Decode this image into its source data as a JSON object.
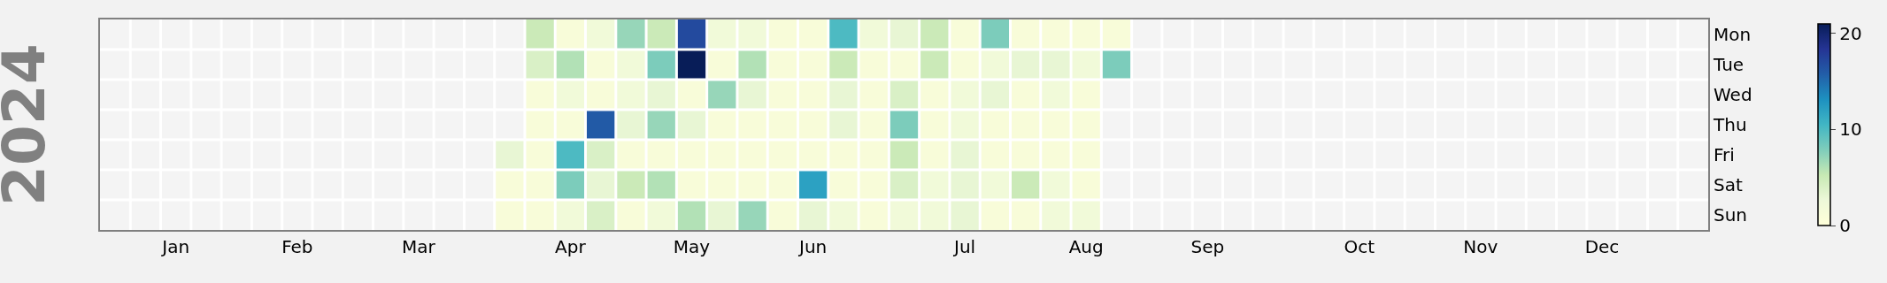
{
  "chart_data": {
    "type": "heatmap",
    "ylabel": "2024",
    "categories": [
      null,
      null,
      "Jan",
      null,
      null,
      null,
      "Feb",
      null,
      null,
      null,
      "Mar",
      null,
      null,
      null,
      null,
      "Apr",
      null,
      null,
      null,
      "May",
      null,
      null,
      null,
      "Jun",
      null,
      null,
      null,
      null,
      "Jul",
      null,
      null,
      null,
      "Aug",
      null,
      null,
      null,
      "Sep",
      null,
      null,
      null,
      null,
      "Oct",
      null,
      null,
      null,
      "Nov",
      null,
      null,
      null,
      "Dec",
      null,
      null,
      null
    ],
    "y_categories": [
      "Mon",
      "Tue",
      "Wed",
      "Thu",
      "Fri",
      "Sat",
      "Sun"
    ],
    "cells": [
      [
        null,
        null,
        null,
        null,
        null,
        null,
        null,
        null,
        null,
        null,
        null,
        null,
        null,
        null,
        5,
        1,
        2,
        7,
        5,
        17,
        2,
        2,
        1,
        1,
        10,
        2,
        3,
        5,
        1,
        8,
        1,
        1,
        1,
        1,
        null,
        null,
        null,
        null,
        null,
        null,
        null,
        null,
        null,
        null,
        null,
        null,
        null,
        null,
        null,
        null,
        null,
        null,
        null
      ],
      [
        null,
        null,
        null,
        null,
        null,
        null,
        null,
        null,
        null,
        null,
        null,
        null,
        null,
        null,
        4,
        6,
        1,
        2,
        8,
        21,
        1,
        6,
        1,
        1,
        5,
        1,
        1,
        5,
        1,
        2,
        3,
        3,
        2,
        8,
        null,
        null,
        null,
        null,
        null,
        null,
        null,
        null,
        null,
        null,
        null,
        null,
        null,
        null,
        null,
        null,
        null,
        null,
        null
      ],
      [
        null,
        null,
        null,
        null,
        null,
        null,
        null,
        null,
        null,
        null,
        null,
        null,
        null,
        null,
        1,
        2,
        1,
        2,
        3,
        1,
        7,
        3,
        1,
        1,
        3,
        1,
        4,
        1,
        2,
        3,
        1,
        2,
        1,
        null,
        null,
        null,
        null,
        null,
        null,
        null,
        null,
        null,
        null,
        null,
        null,
        null,
        null,
        null,
        null,
        null,
        null,
        null,
        null
      ],
      [
        null,
        null,
        null,
        null,
        null,
        null,
        null,
        null,
        null,
        null,
        null,
        null,
        null,
        null,
        1,
        1,
        16,
        3,
        7,
        3,
        1,
        1,
        1,
        1,
        3,
        1,
        8,
        1,
        2,
        1,
        1,
        1,
        1,
        null,
        null,
        null,
        null,
        null,
        null,
        null,
        null,
        null,
        null,
        null,
        null,
        null,
        null,
        null,
        null,
        null,
        null,
        null,
        null
      ],
      [
        null,
        null,
        null,
        null,
        null,
        null,
        null,
        null,
        null,
        null,
        null,
        null,
        null,
        3,
        1,
        10,
        4,
        1,
        1,
        1,
        1,
        1,
        1,
        1,
        1,
        1,
        5,
        1,
        3,
        1,
        1,
        1,
        1,
        null,
        null,
        null,
        null,
        null,
        null,
        null,
        null,
        null,
        null,
        null,
        null,
        null,
        null,
        null,
        null,
        null,
        null,
        null,
        null
      ],
      [
        null,
        null,
        null,
        null,
        null,
        null,
        null,
        null,
        null,
        null,
        null,
        null,
        null,
        1,
        1,
        8,
        3,
        5,
        6,
        1,
        1,
        1,
        1,
        12,
        1,
        1,
        4,
        2,
        3,
        2,
        5,
        2,
        1,
        null,
        null,
        null,
        null,
        null,
        null,
        null,
        null,
        null,
        null,
        null,
        null,
        null,
        null,
        null,
        null,
        null,
        null,
        null,
        null
      ],
      [
        null,
        null,
        null,
        null,
        null,
        null,
        null,
        null,
        null,
        null,
        null,
        null,
        null,
        1,
        1,
        2,
        4,
        1,
        2,
        6,
        3,
        7,
        1,
        3,
        2,
        1,
        2,
        2,
        3,
        1,
        1,
        2,
        2,
        null,
        null,
        null,
        null,
        null,
        null,
        null,
        null,
        null,
        null,
        null,
        null,
        null,
        null,
        null,
        null,
        null,
        null,
        null,
        null
      ]
    ],
    "clim": [
      0,
      21
    ],
    "cticks": [
      0,
      10,
      20
    ]
  }
}
